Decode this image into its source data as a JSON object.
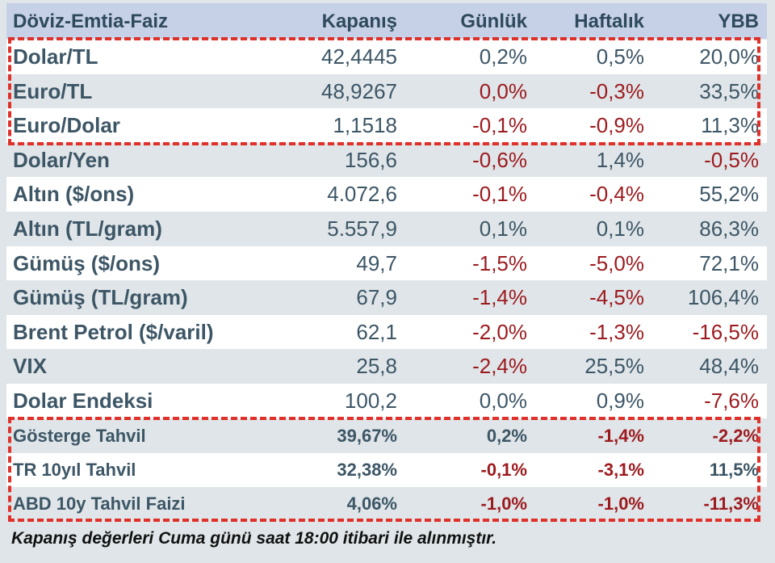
{
  "table": {
    "header": [
      "Döviz-Emtia-Faiz",
      "Kapanış",
      "Günlük",
      "Haftalık",
      "YBB"
    ],
    "rows": [
      {
        "cells": [
          "Dolar/TL",
          "42,4445",
          "0,2%",
          "0,5%",
          "20,0%"
        ],
        "red": []
      },
      {
        "cells": [
          "Euro/TL",
          "48,9267",
          "0,0%",
          "-0,3%",
          "33,5%"
        ],
        "red": [
          2,
          3
        ]
      },
      {
        "cells": [
          "Euro/Dolar",
          "1,1518",
          "-0,1%",
          "-0,9%",
          "11,3%"
        ],
        "red": [
          2,
          3
        ]
      },
      {
        "cells": [
          "Dolar/Yen",
          "156,6",
          "-0,6%",
          "1,4%",
          "-0,5%"
        ],
        "red": [
          2,
          4
        ]
      },
      {
        "cells": [
          "Altın ($/ons)",
          "4.072,6",
          "-0,1%",
          "-0,4%",
          "55,2%"
        ],
        "red": [
          2,
          3
        ]
      },
      {
        "cells": [
          "Altın (TL/gram)",
          "5.557,9",
          "0,1%",
          "0,1%",
          "86,3%"
        ],
        "red": []
      },
      {
        "cells": [
          "Gümüş ($/ons)",
          "49,7",
          "-1,5%",
          "-5,0%",
          "72,1%"
        ],
        "red": [
          2,
          3
        ]
      },
      {
        "cells": [
          "Gümüş (TL/gram)",
          "67,9",
          "-1,4%",
          "-4,5%",
          "106,4%"
        ],
        "red": [
          2,
          3
        ]
      },
      {
        "cells": [
          "Brent Petrol ($/varil)",
          "62,1",
          "-2,0%",
          "-1,3%",
          "-16,5%"
        ],
        "red": [
          2,
          3,
          4
        ]
      },
      {
        "cells": [
          "VIX",
          "25,8",
          "-2,4%",
          "25,5%",
          "48,4%"
        ],
        "red": [
          2
        ]
      },
      {
        "cells": [
          "Dolar Endeksi",
          "100,2",
          "0,0%",
          "0,9%",
          "-7,6%"
        ],
        "red": [
          4
        ]
      },
      {
        "cells": [
          "Gösterge Tahvil",
          "39,67%",
          "0,2%",
          "-1,4%",
          "-2,2%"
        ],
        "red": [
          3,
          4
        ]
      },
      {
        "cells": [
          "TR 10yıl Tahvil",
          "32,38%",
          "-0,1%",
          "-3,1%",
          "11,5%"
        ],
        "red": [
          2,
          3
        ]
      },
      {
        "cells": [
          "ABD 10y Tahvil Faizi",
          "4,06%",
          "-1,0%",
          "-1,0%",
          "-11,3%"
        ],
        "red": [
          2,
          3,
          4
        ]
      }
    ]
  },
  "footer": "Kapanış değerleri Cuma günü saat 18:00 itibari ile alınmıştır.",
  "colors": {
    "text": "#3d5666",
    "negative": "#9c1a1e"
  }
}
